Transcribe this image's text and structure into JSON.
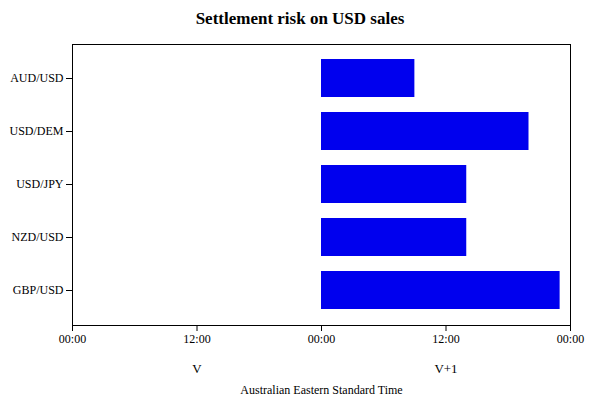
{
  "chart_data": {
    "type": "bar",
    "orientation": "horizontal",
    "title": "Settlement risk on USD sales",
    "categories": [
      "GBP/USD",
      "NZD/USD",
      "USD/JPY",
      "USD/DEM",
      "AUD/USD"
    ],
    "starts": [
      24,
      24,
      24,
      24,
      24
    ],
    "ends": [
      47,
      38,
      38,
      44,
      33
    ],
    "color": "#0000EE",
    "xlim": [
      0,
      48
    ],
    "xticks": [
      {
        "value": 0,
        "label": "00:00"
      },
      {
        "value": 12,
        "label": "12:00"
      },
      {
        "value": 24,
        "label": "00:00"
      },
      {
        "value": 36,
        "label": "12:00"
      },
      {
        "value": 48,
        "label": "00:00"
      }
    ],
    "xlabel": "Australian Eastern Standard Time",
    "annotations": [
      {
        "text": "V",
        "x": 12
      },
      {
        "text": "V+1",
        "x": 36
      }
    ],
    "grid": false
  }
}
